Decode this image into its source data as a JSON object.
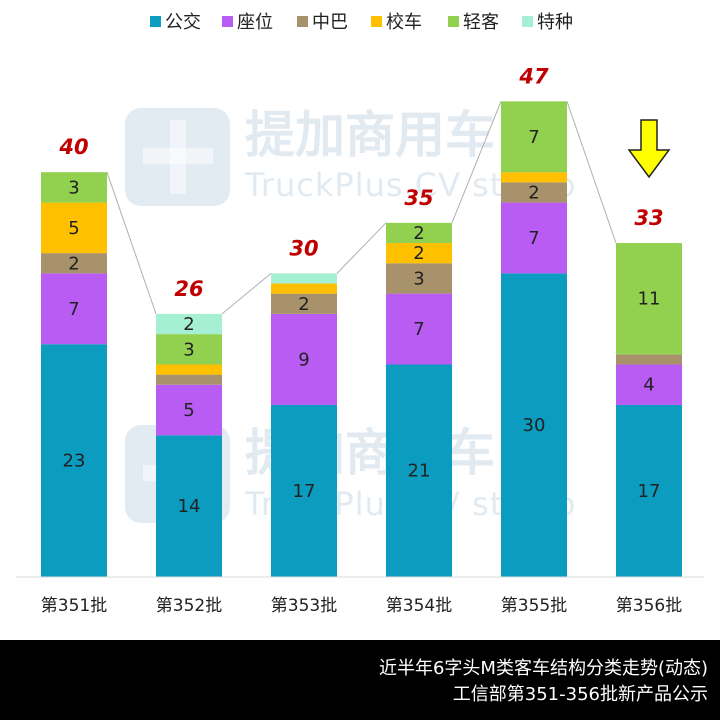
{
  "chart_data": {
    "type": "bar",
    "stacked": true,
    "categories": [
      "第351批",
      "第352批",
      "第353批",
      "第354批",
      "第355批",
      "第356批"
    ],
    "series": [
      {
        "name": "公交",
        "color": "#0b9cc0",
        "values": [
          23,
          14,
          17,
          21,
          30,
          17
        ]
      },
      {
        "name": "座位",
        "color": "#b95cf4",
        "values": [
          7,
          5,
          9,
          7,
          7,
          4
        ]
      },
      {
        "name": "中巴",
        "color": "#a8926b",
        "values": [
          2,
          1,
          2,
          3,
          2,
          1
        ]
      },
      {
        "name": "校车",
        "color": "#ffc000",
        "values": [
          5,
          1,
          1,
          2,
          1,
          0
        ]
      },
      {
        "name": "轻客",
        "color": "#92d050",
        "values": [
          3,
          3,
          0,
          2,
          7,
          11
        ]
      },
      {
        "name": "特种",
        "color": "#a5f0d2",
        "values": [
          0,
          2,
          1,
          0,
          0,
          0
        ]
      }
    ],
    "segment_labels": [
      [
        "23",
        "14",
        "17",
        "21",
        "30",
        "17"
      ],
      [
        "7",
        "5",
        "9",
        "7",
        "7",
        "4"
      ],
      [
        "2",
        "",
        "2",
        "3",
        "2",
        ""
      ],
      [
        "5",
        "",
        "",
        "2",
        "",
        ""
      ],
      [
        "3",
        "3",
        "",
        "2",
        "7",
        "11"
      ],
      [
        "",
        "2",
        "",
        "",
        "",
        ""
      ]
    ],
    "totals": [
      "40",
      "26",
      "30",
      "35",
      "47",
      "33"
    ],
    "ylim": [
      0,
      50
    ],
    "grid": false,
    "legend_position": "top",
    "highlight_arrow_category": "第356批"
  },
  "watermark": {
    "cn": "提加商用车",
    "en": "TruckPlus CV studio"
  },
  "footer": {
    "line1": "近半年6字头M类客车结构分类走势(动态)",
    "line2": "工信部第351-356批新产品公示"
  }
}
